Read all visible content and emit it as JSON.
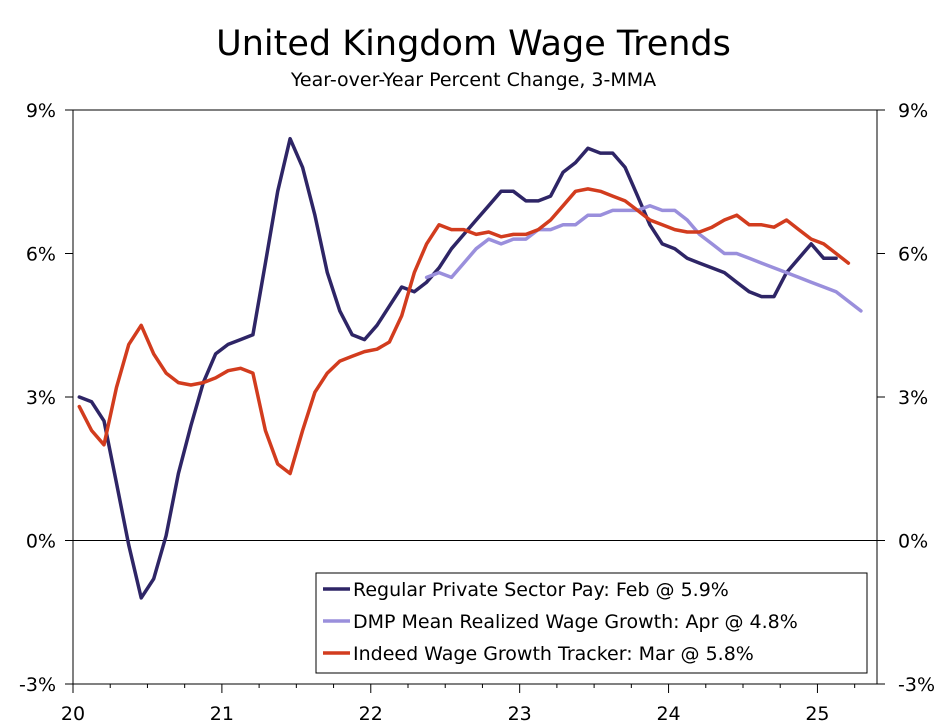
{
  "chart_data": {
    "type": "line",
    "title": "United Kingdom Wage Trends",
    "subtitle": "Year-over-Year Percent Change, 3-MMA",
    "ylim": [
      -3,
      9
    ],
    "xlim": [
      2020.0,
      2025.4
    ],
    "y_ticks": [
      {
        "value": 9,
        "label": "9%"
      },
      {
        "value": 6,
        "label": "6%"
      },
      {
        "value": 3,
        "label": "3%"
      },
      {
        "value": 0,
        "label": "0%"
      },
      {
        "value": -3,
        "label": "-3%"
      }
    ],
    "x_ticks": [
      {
        "value": 2020,
        "label": "20"
      },
      {
        "value": 2021,
        "label": "21"
      },
      {
        "value": 2022,
        "label": "22"
      },
      {
        "value": 2023,
        "label": "23"
      },
      {
        "value": 2024,
        "label": "24"
      },
      {
        "value": 2025,
        "label": "25"
      }
    ],
    "grid": false,
    "legend_position": "bottom-right",
    "series": [
      {
        "name": "Regular Private Sector Pay: Feb @ 5.9%",
        "color": "#2e2566",
        "x": [
          2020.042,
          2020.125,
          2020.208,
          2020.292,
          2020.375,
          2020.458,
          2020.542,
          2020.625,
          2020.708,
          2020.792,
          2020.875,
          2020.958,
          2021.042,
          2021.125,
          2021.208,
          2021.292,
          2021.375,
          2021.458,
          2021.542,
          2021.625,
          2021.708,
          2021.792,
          2021.875,
          2021.958,
          2022.042,
          2022.125,
          2022.208,
          2022.292,
          2022.375,
          2022.458,
          2022.542,
          2022.625,
          2022.708,
          2022.792,
          2022.875,
          2022.958,
          2023.042,
          2023.125,
          2023.208,
          2023.292,
          2023.375,
          2023.458,
          2023.542,
          2023.625,
          2023.708,
          2023.792,
          2023.875,
          2023.958,
          2024.042,
          2024.125,
          2024.208,
          2024.292,
          2024.375,
          2024.458,
          2024.542,
          2024.625,
          2024.708,
          2024.792,
          2024.875,
          2024.958,
          2025.042,
          2025.125
        ],
        "values": [
          3.0,
          2.9,
          2.5,
          1.2,
          -0.1,
          -1.2,
          -0.8,
          0.1,
          1.4,
          2.4,
          3.3,
          3.9,
          4.1,
          4.2,
          4.3,
          5.8,
          7.3,
          8.4,
          7.8,
          6.8,
          5.6,
          4.8,
          4.3,
          4.2,
          4.5,
          4.9,
          5.3,
          5.2,
          5.4,
          5.7,
          6.1,
          6.4,
          6.7,
          7.0,
          7.3,
          7.3,
          7.1,
          7.1,
          7.2,
          7.7,
          7.9,
          8.2,
          8.1,
          8.1,
          7.8,
          7.2,
          6.6,
          6.2,
          6.1,
          5.9,
          5.8,
          5.7,
          5.6,
          5.4,
          5.2,
          5.1,
          5.1,
          5.6,
          5.9,
          6.2,
          5.9,
          5.9
        ]
      },
      {
        "name": "DMP Mean Realized Wage Growth: Apr @ 4.8%",
        "color": "#9a8fdc",
        "x": [
          2022.375,
          2022.458,
          2022.542,
          2022.625,
          2022.708,
          2022.792,
          2022.875,
          2022.958,
          2023.042,
          2023.125,
          2023.208,
          2023.292,
          2023.375,
          2023.458,
          2023.542,
          2023.625,
          2023.708,
          2023.792,
          2023.875,
          2023.958,
          2024.042,
          2024.125,
          2024.208,
          2024.292,
          2024.375,
          2024.458,
          2024.542,
          2024.625,
          2024.708,
          2024.792,
          2024.875,
          2024.958,
          2025.042,
          2025.125,
          2025.208,
          2025.292
        ],
        "values": [
          5.5,
          5.6,
          5.5,
          5.8,
          6.1,
          6.3,
          6.2,
          6.3,
          6.3,
          6.5,
          6.5,
          6.6,
          6.6,
          6.8,
          6.8,
          6.9,
          6.9,
          6.9,
          7.0,
          6.9,
          6.9,
          6.7,
          6.4,
          6.2,
          6.0,
          6.0,
          5.9,
          5.8,
          5.7,
          5.6,
          5.5,
          5.4,
          5.3,
          5.2,
          5.0,
          4.8
        ]
      },
      {
        "name": "Indeed Wage Growth Tracker: Mar @ 5.8%",
        "color": "#d23c1e",
        "x": [
          2020.042,
          2020.125,
          2020.208,
          2020.292,
          2020.375,
          2020.458,
          2020.542,
          2020.625,
          2020.708,
          2020.792,
          2020.875,
          2020.958,
          2021.042,
          2021.125,
          2021.208,
          2021.292,
          2021.375,
          2021.458,
          2021.542,
          2021.625,
          2021.708,
          2021.792,
          2021.875,
          2021.958,
          2022.042,
          2022.125,
          2022.208,
          2022.292,
          2022.375,
          2022.458,
          2022.542,
          2022.625,
          2022.708,
          2022.792,
          2022.875,
          2022.958,
          2023.042,
          2023.125,
          2023.208,
          2023.292,
          2023.375,
          2023.458,
          2023.542,
          2023.625,
          2023.708,
          2023.792,
          2023.875,
          2023.958,
          2024.042,
          2024.125,
          2024.208,
          2024.292,
          2024.375,
          2024.458,
          2024.542,
          2024.625,
          2024.708,
          2024.792,
          2024.875,
          2024.958,
          2025.042,
          2025.125,
          2025.208
        ],
        "values": [
          2.8,
          2.3,
          2.0,
          3.2,
          4.1,
          4.5,
          3.9,
          3.5,
          3.3,
          3.25,
          3.3,
          3.4,
          3.55,
          3.6,
          3.5,
          2.3,
          1.6,
          1.4,
          2.3,
          3.1,
          3.5,
          3.75,
          3.85,
          3.95,
          4.0,
          4.15,
          4.7,
          5.6,
          6.2,
          6.6,
          6.5,
          6.5,
          6.4,
          6.45,
          6.35,
          6.4,
          6.4,
          6.5,
          6.7,
          7.0,
          7.3,
          7.35,
          7.3,
          7.2,
          7.1,
          6.9,
          6.7,
          6.6,
          6.5,
          6.45,
          6.45,
          6.55,
          6.7,
          6.8,
          6.6,
          6.6,
          6.55,
          6.7,
          6.5,
          6.3,
          6.2,
          6.0,
          5.8
        ]
      }
    ]
  }
}
